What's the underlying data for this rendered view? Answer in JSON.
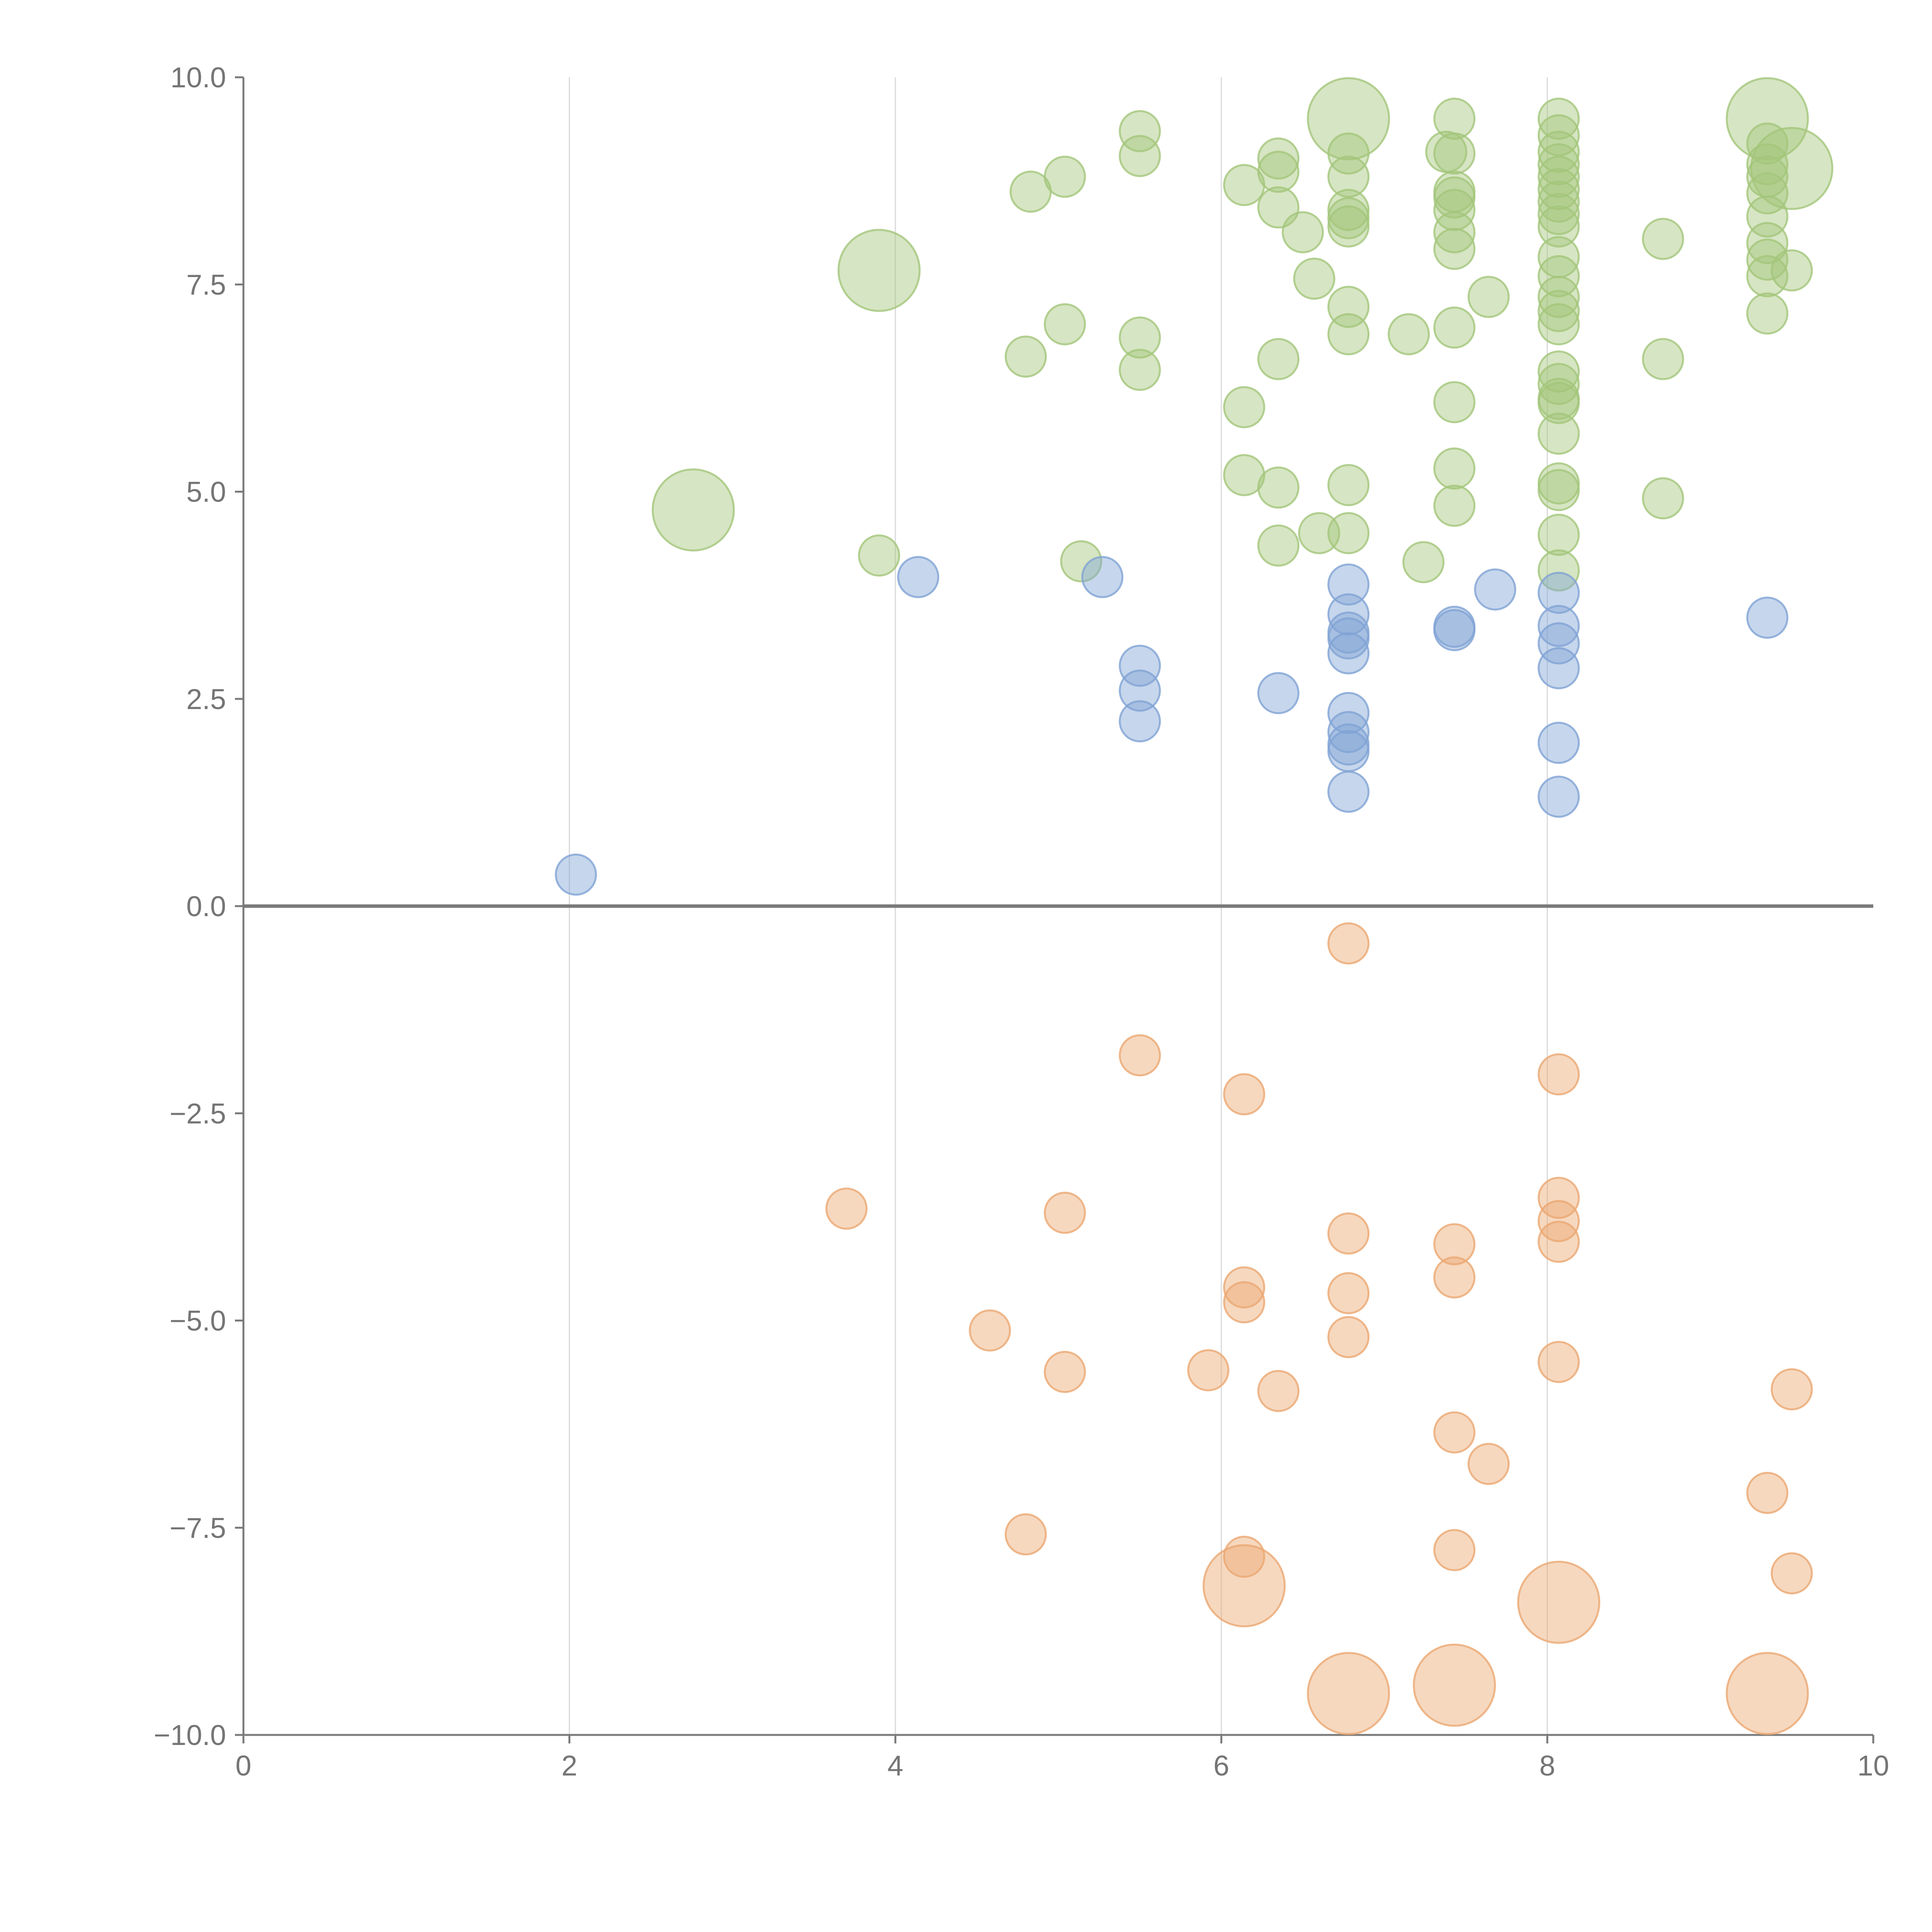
{
  "chart_data": {
    "type": "scatter",
    "title": "",
    "xlabel": "",
    "ylabel": "",
    "xlim": [
      0,
      10
    ],
    "ylim": [
      -10,
      10
    ],
    "x_ticks": [
      "0",
      "2",
      "4",
      "6",
      "8",
      "10"
    ],
    "x_tick_values": [
      0,
      2,
      4,
      6,
      8,
      10
    ],
    "y_ticks": [
      "10.0",
      "7.5",
      "5.0",
      "2.5",
      "0.0",
      "−2.5",
      "−5.0",
      "−7.5",
      "−10.0"
    ],
    "y_tick_values": [
      10,
      7.5,
      5,
      2.5,
      0,
      -2.5,
      -5,
      -7.5,
      -10
    ],
    "x_grid": true,
    "y_grid": false,
    "legend": "none",
    "series": [
      {
        "color": "#a3c57a",
        "points": [
          [
            6.78,
            9.5,
            3
          ],
          [
            9.35,
            9.5,
            3
          ],
          [
            9.5,
            8.9,
            3
          ],
          [
            3.9,
            7.67,
            3
          ],
          [
            2.76,
            4.78,
            3
          ],
          [
            5.5,
            9.35,
            1
          ],
          [
            5.5,
            9.05,
            1
          ],
          [
            4.83,
            8.62,
            1
          ],
          [
            5.04,
            8.8,
            1
          ],
          [
            6.14,
            8.7,
            1
          ],
          [
            6.35,
            9.02,
            1
          ],
          [
            6.35,
            8.86,
            1
          ],
          [
            6.35,
            8.43,
            1
          ],
          [
            6.5,
            8.13,
            1
          ],
          [
            6.78,
            9.08,
            1
          ],
          [
            6.78,
            8.8,
            1
          ],
          [
            6.78,
            8.4,
            1
          ],
          [
            6.78,
            8.3,
            1
          ],
          [
            6.78,
            8.2,
            1
          ],
          [
            6.78,
            7.23,
            1
          ],
          [
            6.78,
            6.9,
            1
          ],
          [
            7.38,
            9.1,
            1
          ],
          [
            7.43,
            9.5,
            1
          ],
          [
            7.43,
            9.08,
            1
          ],
          [
            7.43,
            8.62,
            1
          ],
          [
            7.43,
            8.55,
            1
          ],
          [
            7.43,
            8.4,
            1
          ],
          [
            7.43,
            8.13,
            1
          ],
          [
            7.43,
            7.93,
            1
          ],
          [
            7.43,
            6.98,
            1
          ],
          [
            7.64,
            7.35,
            1
          ],
          [
            7.15,
            6.9,
            1
          ],
          [
            6.57,
            7.57,
            1
          ],
          [
            8.07,
            9.5,
            1
          ],
          [
            8.07,
            9.3,
            1
          ],
          [
            8.07,
            9.1,
            1
          ],
          [
            8.07,
            8.95,
            1
          ],
          [
            8.07,
            8.8,
            1
          ],
          [
            8.07,
            8.65,
            1
          ],
          [
            8.07,
            8.5,
            1
          ],
          [
            8.07,
            8.35,
            1
          ],
          [
            8.07,
            8.2,
            1
          ],
          [
            8.07,
            7.83,
            1
          ],
          [
            8.07,
            7.6,
            1
          ],
          [
            8.07,
            7.35,
            1
          ],
          [
            8.07,
            7.18,
            1
          ],
          [
            8.07,
            7.02,
            1
          ],
          [
            8.07,
            6.45,
            1
          ],
          [
            8.07,
            6.3,
            1
          ],
          [
            8.07,
            6.12,
            1
          ],
          [
            8.07,
            6.07,
            1
          ],
          [
            8.07,
            5.7,
            1
          ],
          [
            8.07,
            5.1,
            1
          ],
          [
            8.07,
            5.02,
            1
          ],
          [
            8.07,
            4.48,
            1
          ],
          [
            8.07,
            4.05,
            1
          ],
          [
            8.71,
            8.05,
            1
          ],
          [
            8.71,
            6.6,
            1
          ],
          [
            8.71,
            4.92,
            1
          ],
          [
            9.35,
            9.2,
            1
          ],
          [
            9.35,
            8.95,
            1
          ],
          [
            9.35,
            8.8,
            1
          ],
          [
            9.35,
            8.6,
            1
          ],
          [
            9.35,
            8.32,
            1
          ],
          [
            9.35,
            8.0,
            1
          ],
          [
            9.35,
            7.8,
            1
          ],
          [
            9.35,
            7.6,
            1
          ],
          [
            9.35,
            7.15,
            1
          ],
          [
            9.5,
            7.67,
            1
          ],
          [
            5.04,
            7.02,
            1
          ],
          [
            4.8,
            6.63,
            1
          ],
          [
            5.5,
            6.86,
            1
          ],
          [
            5.5,
            6.47,
            1
          ],
          [
            6.35,
            6.6,
            1
          ],
          [
            6.14,
            6.02,
            1
          ],
          [
            7.43,
            6.08,
            1
          ],
          [
            6.14,
            5.2,
            1
          ],
          [
            6.35,
            5.05,
            1
          ],
          [
            6.78,
            5.08,
            1
          ],
          [
            7.43,
            5.28,
            1
          ],
          [
            7.43,
            4.83,
            1
          ],
          [
            6.35,
            4.35,
            1
          ],
          [
            6.6,
            4.5,
            1
          ],
          [
            6.78,
            4.5,
            1
          ],
          [
            7.24,
            4.15,
            1
          ],
          [
            5.14,
            4.16,
            1
          ],
          [
            3.9,
            4.23,
            1
          ]
        ]
      },
      {
        "color": "#80a3d4",
        "points": [
          [
            2.04,
            0.38,
            1
          ],
          [
            4.14,
            3.97,
            1
          ],
          [
            5.27,
            3.97,
            1
          ],
          [
            5.5,
            2.9,
            1
          ],
          [
            5.5,
            2.6,
            1
          ],
          [
            5.5,
            2.23,
            1
          ],
          [
            6.35,
            2.57,
            1
          ],
          [
            6.78,
            3.88,
            1
          ],
          [
            6.78,
            3.52,
            1
          ],
          [
            6.78,
            3.3,
            1
          ],
          [
            6.78,
            3.23,
            1
          ],
          [
            6.78,
            3.05,
            1
          ],
          [
            6.78,
            2.33,
            1
          ],
          [
            6.78,
            2.1,
            1
          ],
          [
            6.78,
            1.95,
            1
          ],
          [
            6.78,
            1.87,
            1
          ],
          [
            6.78,
            1.38,
            1
          ],
          [
            7.43,
            3.37,
            1
          ],
          [
            7.43,
            3.33,
            1
          ],
          [
            7.68,
            3.82,
            1
          ],
          [
            8.07,
            3.78,
            1
          ],
          [
            8.07,
            3.38,
            1
          ],
          [
            8.07,
            3.17,
            1
          ],
          [
            8.07,
            2.87,
            1
          ],
          [
            8.07,
            1.97,
            1
          ],
          [
            8.07,
            1.32,
            1
          ],
          [
            9.35,
            3.48,
            1
          ]
        ]
      },
      {
        "color": "#eba872",
        "points": [
          [
            6.78,
            -9.5,
            3
          ],
          [
            7.43,
            -9.4,
            3
          ],
          [
            9.35,
            -9.5,
            3
          ],
          [
            8.07,
            -8.4,
            3
          ],
          [
            6.14,
            -8.2,
            3
          ],
          [
            6.78,
            -0.45,
            1
          ],
          [
            5.5,
            -1.8,
            1
          ],
          [
            6.14,
            -2.27,
            1
          ],
          [
            8.07,
            -2.03,
            1
          ],
          [
            3.7,
            -3.65,
            1
          ],
          [
            5.04,
            -3.7,
            1
          ],
          [
            6.78,
            -3.95,
            1
          ],
          [
            7.43,
            -4.08,
            1
          ],
          [
            8.07,
            -3.52,
            1
          ],
          [
            8.07,
            -3.8,
            1
          ],
          [
            8.07,
            -4.05,
            1
          ],
          [
            6.14,
            -4.6,
            1
          ],
          [
            6.14,
            -4.78,
            1
          ],
          [
            6.78,
            -4.67,
            1
          ],
          [
            7.43,
            -4.48,
            1
          ],
          [
            4.58,
            -5.12,
            1
          ],
          [
            6.78,
            -5.2,
            1
          ],
          [
            5.04,
            -5.62,
            1
          ],
          [
            5.92,
            -5.6,
            1
          ],
          [
            6.35,
            -5.85,
            1
          ],
          [
            8.07,
            -5.5,
            1
          ],
          [
            9.5,
            -5.83,
            1
          ],
          [
            7.43,
            -6.35,
            1
          ],
          [
            7.64,
            -6.73,
            1
          ],
          [
            9.35,
            -7.08,
            1
          ],
          [
            4.8,
            -7.58,
            1
          ],
          [
            7.43,
            -7.77,
            1
          ],
          [
            6.14,
            -7.85,
            1
          ],
          [
            9.5,
            -8.05,
            1
          ]
        ]
      }
    ]
  }
}
